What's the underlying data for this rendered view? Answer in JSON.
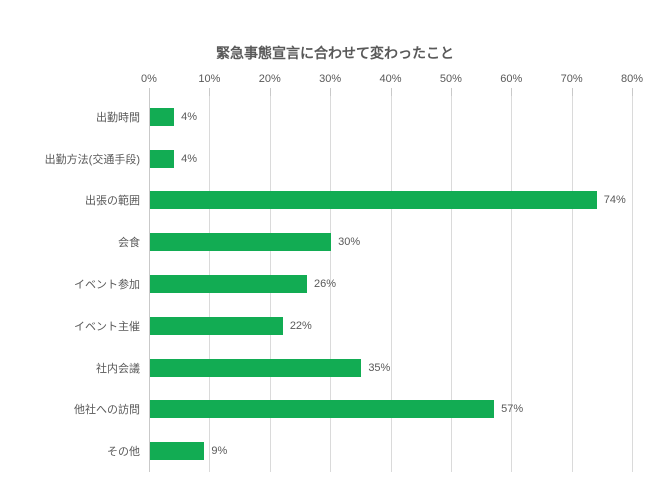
{
  "chart_data": {
    "type": "bar",
    "orientation": "horizontal",
    "title": "緊急事態宣言に合わせて変わったこと",
    "categories": [
      "出勤時間",
      "出勤方法(交通手段)",
      "出張の範囲",
      "会食",
      "イベント参加",
      "イベント主催",
      "社内会議",
      "他社への訪問",
      "その他"
    ],
    "values": [
      4,
      4,
      74,
      30,
      26,
      22,
      35,
      57,
      9
    ],
    "value_labels": [
      "4%",
      "4%",
      "74%",
      "30%",
      "26%",
      "22%",
      "35%",
      "57%",
      "9%"
    ],
    "x_tick_labels": [
      "0%",
      "10%",
      "20%",
      "30%",
      "40%",
      "50%",
      "60%",
      "70%",
      "80%"
    ],
    "xlim": [
      0,
      80
    ],
    "x_tick_step": 10,
    "grid": true,
    "legend": "none",
    "value_axis_position": "top",
    "colors": {
      "bar": "#12AC53",
      "text": "#595959",
      "gridline": "#DADADA",
      "tick": "#C9C9C9",
      "axis_line": "#C9C9C9",
      "background": "#FFFFFF"
    }
  }
}
